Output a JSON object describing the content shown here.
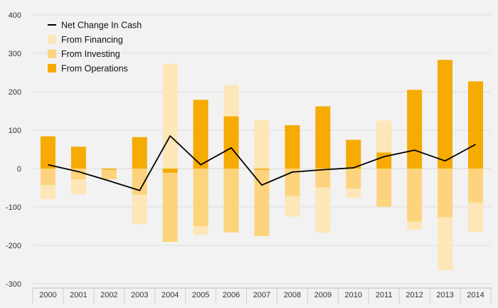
{
  "chart_data": {
    "type": "bar",
    "subtype": "stacked-bar-with-line",
    "title": "",
    "xlabel": "",
    "ylabel": "",
    "ylim": [
      -300,
      400
    ],
    "yticks": [
      -300,
      -200,
      -100,
      0,
      100,
      200,
      300,
      400
    ],
    "grid": true,
    "legend_position": "top-left",
    "categories": [
      "2000",
      "2001",
      "2002",
      "2003",
      "2004",
      "2005",
      "2006",
      "2007",
      "2008",
      "2009",
      "2010",
      "2011",
      "2012",
      "2013",
      "2014"
    ],
    "series": [
      {
        "name": "From Operations",
        "kind": "bar",
        "color": "#f5ab00",
        "values": [
          84,
          57,
          -3,
          82,
          -11,
          179,
          136,
          -3,
          113,
          162,
          75,
          42,
          205,
          283,
          227
        ]
      },
      {
        "name": "From Investing",
        "kind": "bar",
        "color": "#fdd47d",
        "values": [
          -43,
          -28,
          -25,
          -68,
          -180,
          -150,
          -166,
          -173,
          -72,
          -49,
          -52,
          -99,
          -138,
          -127,
          -88
        ]
      },
      {
        "name": "From Financing",
        "kind": "bar",
        "color": "#fde6b8",
        "values": [
          -37,
          -39,
          0,
          -77,
          273,
          -23,
          82,
          126,
          -53,
          -118,
          -24,
          83,
          -21,
          -138,
          -77
        ]
      },
      {
        "name": "Net Change In Cash",
        "kind": "line",
        "color": "#000000",
        "values": [
          10,
          -8,
          -32,
          -57,
          85,
          10,
          54,
          -43,
          -9,
          -3,
          2,
          31,
          48,
          20,
          63
        ]
      }
    ],
    "legend_order": [
      "Net Change In Cash",
      "From Financing",
      "From Investing",
      "From Operations"
    ]
  }
}
